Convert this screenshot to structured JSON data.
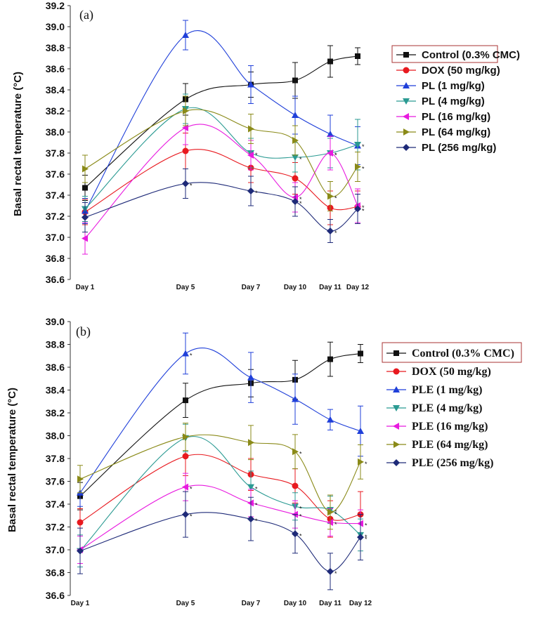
{
  "chart_data": [
    {
      "type": "line",
      "panel_label": "(a)",
      "ylabel": "Basal rectal temperature (°C)",
      "xlabel": "",
      "categories": [
        "Day 1",
        "Day 5",
        "Day 7",
        "Day 10",
        "Day 11",
        "Day 12"
      ],
      "x": [
        1,
        5,
        7,
        10,
        11,
        12
      ],
      "ylim": [
        36.6,
        39.2
      ],
      "yticks": [
        "36.6",
        "36.8",
        "37.0",
        "37.2",
        "37.4",
        "37.6",
        "37.8",
        "38.0",
        "38.2",
        "38.4",
        "38.6",
        "38.8",
        "39.0",
        "39.2"
      ],
      "legend_position": "right",
      "series": [
        {
          "name": "Control (0.3% CMC)",
          "color": "#111111",
          "marker": "square",
          "values": [
            37.47,
            38.31,
            38.45,
            38.49,
            38.67,
            38.72
          ],
          "err": [
            0.12,
            0.15,
            0.12,
            0.17,
            0.15,
            0.08
          ],
          "stars": [
            false,
            false,
            false,
            false,
            false,
            false
          ]
        },
        {
          "name": "DOX (50 mg/kg)",
          "color": "#e8191f",
          "marker": "circle",
          "values": [
            37.24,
            37.82,
            37.66,
            37.56,
            37.28,
            37.29
          ],
          "err": [
            0.12,
            0.17,
            0.14,
            0.15,
            0.16,
            0.15
          ],
          "stars": [
            false,
            false,
            false,
            false,
            false,
            false
          ]
        },
        {
          "name": "PL (1 mg/kg)",
          "color": "#1f3fd9",
          "marker": "triangle-up",
          "values": [
            37.25,
            38.92,
            38.45,
            38.16,
            37.98,
            37.87
          ],
          "err": [
            0.12,
            0.14,
            0.18,
            0.18,
            0.18,
            0.18
          ],
          "stars": [
            false,
            false,
            false,
            false,
            false,
            false
          ]
        },
        {
          "name": "PL (4 mg/kg)",
          "color": "#2a9a92",
          "marker": "triangle-down",
          "values": [
            37.27,
            38.22,
            37.8,
            37.76,
            37.8,
            37.88
          ],
          "err": [
            0.12,
            0.14,
            0.14,
            0.14,
            0.14,
            0.24
          ],
          "stars": [
            false,
            false,
            true,
            true,
            true,
            true
          ]
        },
        {
          "name": "PL (16 mg/kg)",
          "color": "#e81adf",
          "marker": "triangle-left",
          "values": [
            36.99,
            38.04,
            37.78,
            37.38,
            37.8,
            37.3
          ],
          "err": [
            0.15,
            0.16,
            0.14,
            0.14,
            0.16,
            0.16
          ],
          "stars": [
            false,
            false,
            false,
            true,
            true,
            true
          ]
        },
        {
          "name": "PL (64 mg/kg)",
          "color": "#8a8a18",
          "marker": "triangle-right",
          "values": [
            37.65,
            38.2,
            38.03,
            37.92,
            37.39,
            37.67
          ],
          "err": [
            0.13,
            0.14,
            0.14,
            0.14,
            0.14,
            0.14
          ],
          "stars": [
            false,
            false,
            false,
            false,
            true,
            true
          ]
        },
        {
          "name": "PL (256 mg/kg)",
          "color": "#1e2a78",
          "marker": "diamond",
          "values": [
            37.19,
            37.51,
            37.44,
            37.34,
            37.06,
            37.27
          ],
          "err": [
            0.14,
            0.14,
            0.14,
            0.14,
            0.11,
            0.14
          ],
          "stars": [
            false,
            true,
            true,
            true,
            true,
            true
          ]
        }
      ]
    },
    {
      "type": "line",
      "panel_label": "(b)",
      "ylabel": "Basal rectal temperature (°C)",
      "xlabel": "",
      "categories": [
        "Day 1",
        "Day 5",
        "Day 7",
        "Day 10",
        "Day 11",
        "Day 12"
      ],
      "x": [
        1,
        5,
        7,
        10,
        11,
        12
      ],
      "ylim": [
        36.6,
        39.0
      ],
      "yticks": [
        "36.6",
        "36.8",
        "37.0",
        "37.2",
        "37.4",
        "37.6",
        "37.8",
        "38.0",
        "38.2",
        "38.4",
        "38.6",
        "38.8",
        "39.0"
      ],
      "legend_position": "right",
      "series": [
        {
          "name": "Control (0.3% CMC)",
          "color": "#111111",
          "marker": "square",
          "values": [
            37.47,
            38.31,
            38.46,
            38.49,
            38.67,
            38.72
          ],
          "err": [
            0.12,
            0.15,
            0.12,
            0.17,
            0.15,
            0.08
          ],
          "stars": [
            false,
            false,
            false,
            false,
            false,
            false
          ]
        },
        {
          "name": "DOX (50 mg/kg)",
          "color": "#e8191f",
          "marker": "circle",
          "values": [
            37.24,
            37.82,
            37.66,
            37.56,
            37.27,
            37.31
          ],
          "err": [
            0.12,
            0.17,
            0.14,
            0.15,
            0.16,
            0.2
          ],
          "stars": [
            false,
            false,
            false,
            false,
            false,
            false
          ]
        },
        {
          "name": "PLE  (1 mg/kg)",
          "color": "#1f3fd9",
          "marker": "triangle-up",
          "values": [
            37.5,
            38.72,
            38.51,
            38.32,
            38.14,
            38.04
          ],
          "err": [
            0.12,
            0.18,
            0.22,
            0.22,
            0.09,
            0.22
          ],
          "stars": [
            false,
            true,
            false,
            false,
            false,
            false
          ]
        },
        {
          "name": "PLE  (4 mg/kg)",
          "color": "#2a9a92",
          "marker": "triangle-down",
          "values": [
            36.99,
            37.98,
            37.55,
            37.38,
            37.35,
            37.13
          ],
          "err": [
            0.14,
            0.12,
            0.14,
            0.12,
            0.12,
            0.14
          ],
          "stars": [
            false,
            false,
            true,
            true,
            true,
            true
          ]
        },
        {
          "name": "PLE  (16 mg/kg)",
          "color": "#e81adf",
          "marker": "triangle-left",
          "values": [
            37.0,
            37.55,
            37.41,
            37.31,
            37.24,
            37.23
          ],
          "err": [
            0.12,
            0.12,
            0.12,
            0.12,
            0.12,
            0.12
          ],
          "stars": [
            false,
            true,
            true,
            true,
            true,
            true
          ]
        },
        {
          "name": "PLE  (64 mg/kg)",
          "color": "#8a8a18",
          "marker": "triangle-right",
          "values": [
            37.62,
            37.99,
            37.94,
            37.86,
            37.33,
            37.77
          ],
          "err": [
            0.12,
            0.12,
            0.15,
            0.15,
            0.15,
            0.15
          ],
          "stars": [
            false,
            false,
            false,
            true,
            true,
            true
          ]
        },
        {
          "name": "PLE  (256 mg/kg)",
          "color": "#1e2a78",
          "marker": "diamond",
          "values": [
            36.99,
            37.31,
            37.27,
            37.14,
            36.81,
            37.11
          ],
          "err": [
            0.2,
            0.2,
            0.19,
            0.17,
            0.16,
            0.2
          ],
          "stars": [
            false,
            true,
            true,
            true,
            true,
            true
          ]
        }
      ]
    }
  ]
}
